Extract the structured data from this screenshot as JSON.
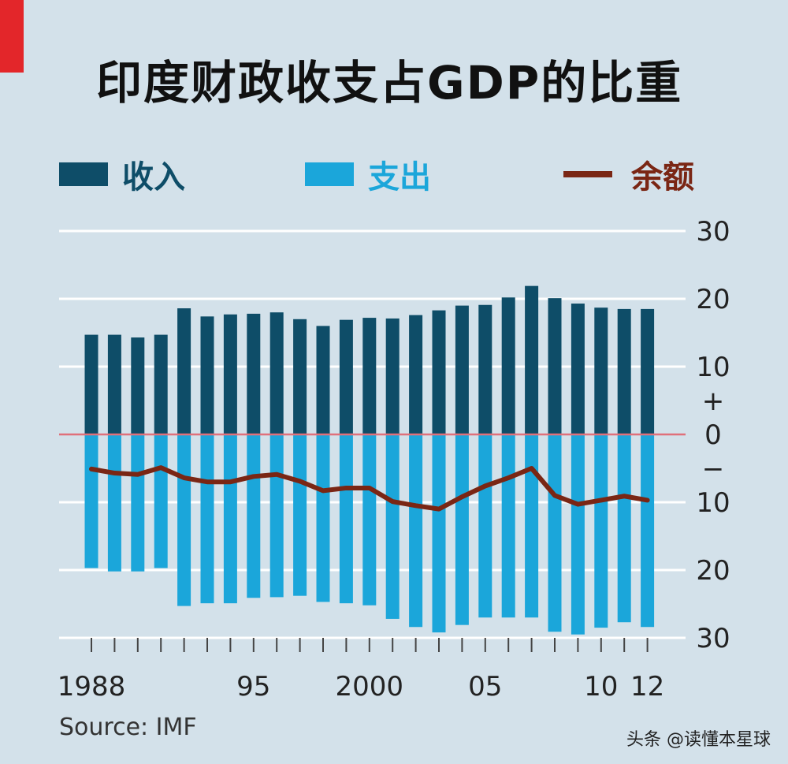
{
  "chart_data": {
    "type": "bar",
    "title": "印度财政收支占GDP的比重",
    "years": [
      1988,
      1989,
      1990,
      1991,
      1992,
      1993,
      1994,
      1995,
      1996,
      1997,
      1998,
      1999,
      2000,
      2001,
      2002,
      2003,
      2004,
      2005,
      2006,
      2007,
      2008,
      2009,
      2010,
      2011,
      2012
    ],
    "series": [
      {
        "name": "收入",
        "kind": "bar",
        "color": "#0e4d68",
        "values": [
          14.7,
          14.7,
          14.3,
          14.7,
          18.6,
          17.4,
          17.7,
          17.8,
          18.0,
          17.0,
          16.0,
          16.9,
          17.2,
          17.1,
          17.6,
          18.3,
          19.0,
          19.1,
          20.2,
          21.9,
          20.1,
          19.3,
          18.7,
          18.5,
          18.5
        ]
      },
      {
        "name": "支出",
        "kind": "bar",
        "color": "#1ba6da",
        "values": [
          -19.7,
          -20.2,
          -20.2,
          -19.7,
          -25.3,
          -24.9,
          -24.9,
          -24.1,
          -24.0,
          -23.8,
          -24.7,
          -24.9,
          -25.2,
          -27.2,
          -28.4,
          -29.2,
          -28.1,
          -27.0,
          -27.0,
          -27.0,
          -29.1,
          -29.5,
          -28.5,
          -27.7,
          -28.4
        ]
      },
      {
        "name": "余额",
        "kind": "line",
        "color": "#7a2614",
        "values": [
          -5.1,
          -5.7,
          -5.9,
          -4.9,
          -6.4,
          -7.0,
          -7.0,
          -6.2,
          -5.9,
          -6.9,
          -8.3,
          -7.9,
          -7.9,
          -9.9,
          -10.5,
          -11.0,
          -9.2,
          -7.6,
          -6.4,
          -5.0,
          -9.0,
          -10.3,
          -9.7,
          -9.1,
          -9.7
        ]
      }
    ],
    "ylim": [
      -30,
      30
    ],
    "y_ticks": [
      {
        "value": 30,
        "label": "30"
      },
      {
        "value": 20,
        "label": "20"
      },
      {
        "value": 10,
        "label": "10"
      },
      {
        "value": 5,
        "label": "+"
      },
      {
        "value": 0,
        "label": "0"
      },
      {
        "value": -5,
        "label": "−"
      },
      {
        "value": -10,
        "label": "10"
      },
      {
        "value": -20,
        "label": "20"
      },
      {
        "value": -30,
        "label": "30"
      }
    ],
    "x_ticks": [
      {
        "year": 1988,
        "label": "1988"
      },
      {
        "year": 1995,
        "label": "95"
      },
      {
        "year": 2000,
        "label": "2000"
      },
      {
        "year": 2005,
        "label": "05"
      },
      {
        "year": 2010,
        "label": "10"
      },
      {
        "year": 2012,
        "label": "12"
      }
    ],
    "legend_placement": "top",
    "source": "Source: IMF"
  },
  "watermark": "头条 @读懂本星球"
}
